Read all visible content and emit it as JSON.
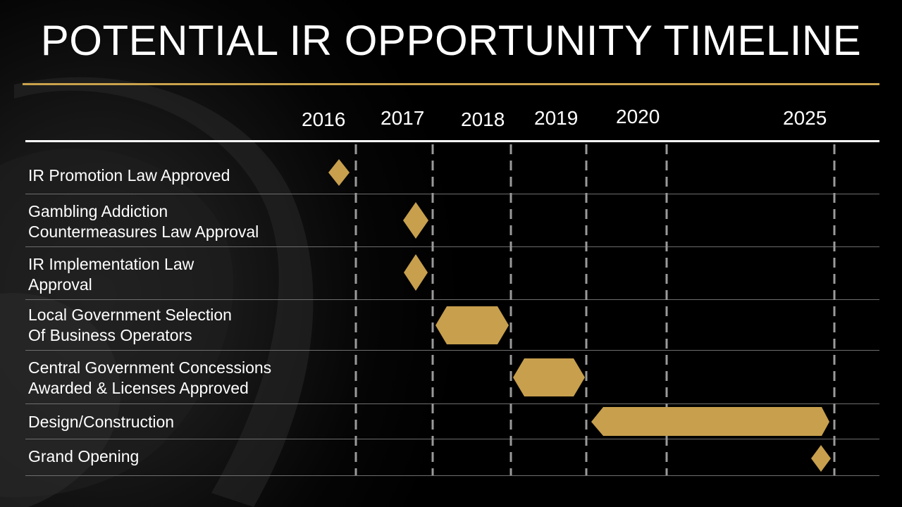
{
  "title": "POTENTIAL IR OPPORTUNITY TIMELINE",
  "years": [
    "2016",
    "2017",
    "2018",
    "2019",
    "2020",
    "2025"
  ],
  "milestones": [
    {
      "lines": [
        "IR Promotion Law Approved"
      ],
      "kind": "diamond",
      "year": "2016"
    },
    {
      "lines": [
        "Gambling Addiction",
        "Countermeasures Law Approval"
      ],
      "kind": "diamond",
      "year": "2017"
    },
    {
      "lines": [
        "IR Implementation Law",
        "Approval"
      ],
      "kind": "diamond",
      "year": "2017"
    },
    {
      "lines": [
        "Local Government Selection",
        "Of Business Operators"
      ],
      "kind": "span",
      "start": "2018",
      "end": "2018"
    },
    {
      "lines": [
        "Central Government Concessions",
        "Awarded & Licenses Approved"
      ],
      "kind": "span",
      "start": "2019",
      "end": "2019"
    },
    {
      "lines": [
        "Design/Construction"
      ],
      "kind": "span",
      "start": "2020",
      "end": "2025"
    },
    {
      "lines": [
        "Grand Opening"
      ],
      "kind": "diamond",
      "year": "2025"
    }
  ],
  "colors": {
    "accent_gold": "#c9a24b",
    "bar_gold": "#c79f4d",
    "background": "#000000",
    "text": "#ffffff",
    "divider": "#9a9a9a"
  }
}
